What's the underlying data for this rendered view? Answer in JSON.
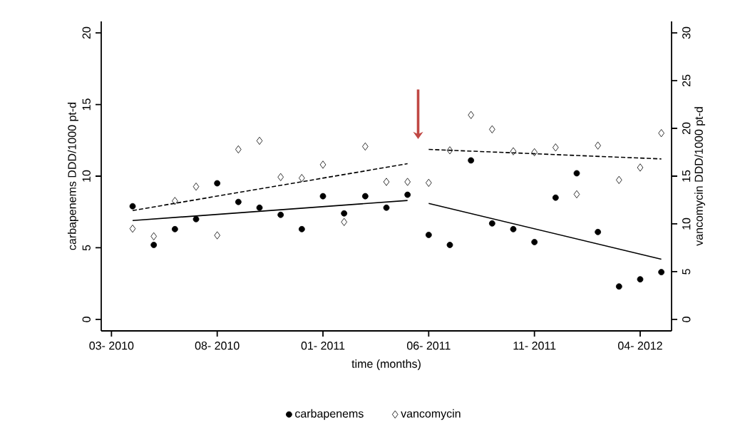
{
  "chart_data": {
    "type": "scatter",
    "xlabel": "time (months)",
    "ylabel": "carbapenems DDD/1000 pt-d",
    "y2label": "vancomycin DDD/1000 pt-d",
    "x": [
      "2010-04",
      "2010-05",
      "2010-06",
      "2010-07",
      "2010-08",
      "2010-09",
      "2010-10",
      "2010-11",
      "2010-12",
      "2011-01",
      "2011-02",
      "2011-03",
      "2011-04",
      "2011-05",
      "2011-06",
      "2011-07",
      "2011-08",
      "2011-09",
      "2011-10",
      "2011-11",
      "2011-12",
      "2012-01",
      "2012-02",
      "2012-03",
      "2012-04",
      "2012-05"
    ],
    "series": [
      {
        "name": "carbapenems",
        "color": "#000000",
        "marker": "circle",
        "values": [
          7.9,
          5.2,
          6.3,
          7.0,
          9.5,
          8.2,
          7.8,
          7.3,
          6.3,
          8.6,
          7.4,
          8.6,
          7.8,
          8.7,
          5.9,
          5.2,
          11.1,
          6.7,
          6.3,
          5.4,
          8.5,
          10.2,
          6.1,
          2.3,
          2.8,
          3.3
        ]
      },
      {
        "name": "vancomycin",
        "color": "#000000",
        "marker": "diamond",
        "axis": "y2",
        "values": [
          9.5,
          8.7,
          12.4,
          13.9,
          8.8,
          17.8,
          18.7,
          14.9,
          14.8,
          16.2,
          10.2,
          18.1,
          14.4,
          14.4,
          14.3,
          17.7,
          21.4,
          19.9,
          17.6,
          17.5,
          18.0,
          13.1,
          18.2,
          14.6,
          15.9,
          19.5
        ]
      },
      {
        "type": "line",
        "color": "#000000",
        "line_style": "solid",
        "x": [
          "2010-04",
          "2011-05"
        ],
        "values": [
          6.9,
          8.3
        ]
      },
      {
        "type": "line",
        "color": "#000000",
        "line_style": "solid",
        "x": [
          "2011-06",
          "2012-05"
        ],
        "values": [
          8.1,
          4.2
        ]
      },
      {
        "type": "line",
        "color": "#000000",
        "line_style": "dashed",
        "axis": "y2",
        "x": [
          "2010-04",
          "2011-05"
        ],
        "values": [
          11.4,
          16.3
        ]
      },
      {
        "type": "line",
        "color": "#000000",
        "line_style": "dashed",
        "axis": "y2",
        "x": [
          "2011-06",
          "2012-05"
        ],
        "values": [
          17.8,
          16.8
        ]
      }
    ],
    "xlim": [
      "2010-02-17",
      "2012-05-16"
    ],
    "xticks": [
      {
        "value": "2010-03",
        "label": "03- 2010"
      },
      {
        "value": "2010-08",
        "label": "08- 2010"
      },
      {
        "value": "2011-01",
        "label": "01- 2011"
      },
      {
        "value": "2011-06",
        "label": "06- 2011"
      },
      {
        "value": "2011-11",
        "label": "11- 2011"
      },
      {
        "value": "2012-04",
        "label": "04- 2012"
      }
    ],
    "ylim": [
      -0.8,
      20.8
    ],
    "yticks": [
      0,
      5,
      10,
      15,
      20
    ],
    "y2lim": [
      -1.2,
      31.2
    ],
    "y2ticks": [
      0,
      5,
      10,
      15,
      20,
      25,
      30
    ],
    "legend": "bottom"
  }
}
